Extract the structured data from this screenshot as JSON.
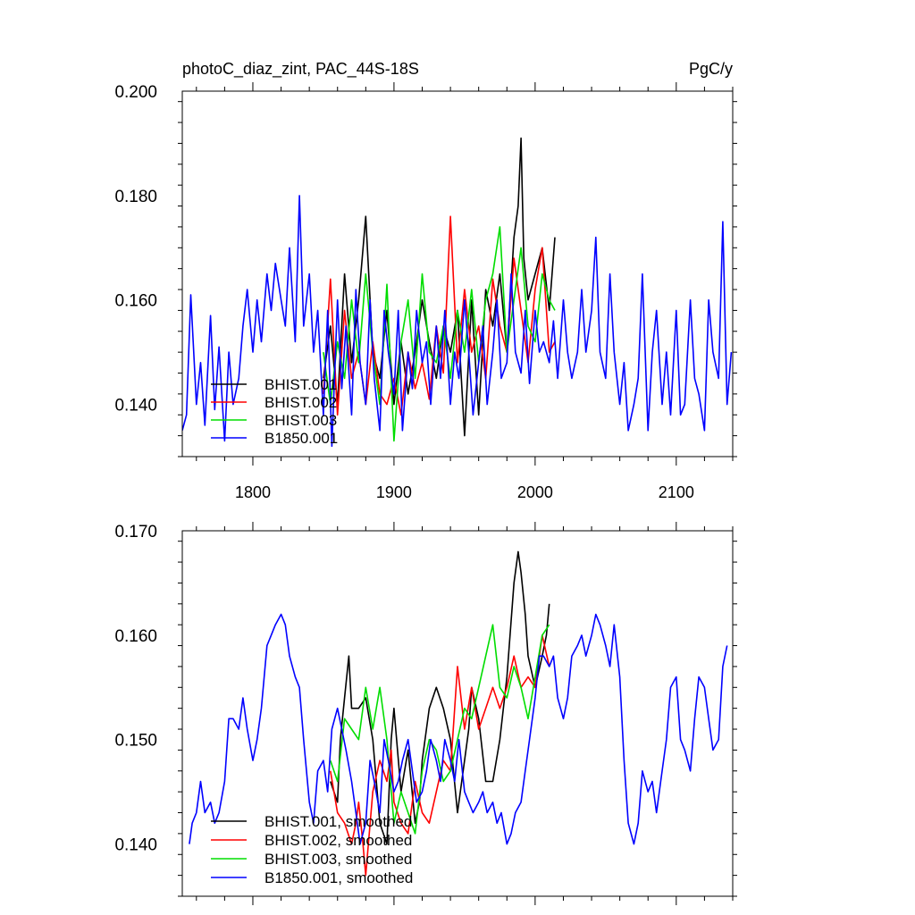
{
  "figure": {
    "title_left": "photoC_diaz_zint, PAC_44S-18S",
    "title_right": "PgC/y"
  },
  "colors": {
    "BHIST.001": "#000000",
    "BHIST.002": "#ff0000",
    "BHIST.003": "#00dd00",
    "B1850.001": "#0000ff"
  },
  "chart_data": [
    {
      "type": "line",
      "title": "photoC_diaz_zint, PAC_44S-18S",
      "units": "PgC/y",
      "xlim": [
        1750,
        2140
      ],
      "ylim": [
        0.13,
        0.2
      ],
      "x_ticks": [
        1800,
        1900,
        2000,
        2100
      ],
      "x_tick_labels": [
        "1800",
        "1900",
        "2000",
        "2100"
      ],
      "y_ticks": [
        0.14,
        0.16,
        0.18,
        0.2
      ],
      "y_tick_labels": [
        "0.140",
        "0.160",
        "0.180",
        "0.200"
      ],
      "grid": false,
      "legend": "bottom-left",
      "series": [
        {
          "name": "BHIST.001",
          "x": [
            1850,
            1855,
            1860,
            1865,
            1870,
            1875,
            1880,
            1885,
            1890,
            1895,
            1900,
            1905,
            1910,
            1915,
            1920,
            1925,
            1930,
            1935,
            1940,
            1945,
            1950,
            1955,
            1960,
            1965,
            1970,
            1975,
            1980,
            1985,
            1988,
            1990,
            1992,
            1995,
            2000,
            2005,
            2010,
            2014
          ],
          "values": [
            0.145,
            0.155,
            0.14,
            0.165,
            0.148,
            0.16,
            0.176,
            0.15,
            0.145,
            0.158,
            0.14,
            0.152,
            0.142,
            0.15,
            0.16,
            0.152,
            0.145,
            0.155,
            0.15,
            0.158,
            0.134,
            0.16,
            0.138,
            0.162,
            0.155,
            0.165,
            0.15,
            0.172,
            0.178,
            0.191,
            0.168,
            0.16,
            0.165,
            0.17,
            0.158,
            0.172
          ]
        },
        {
          "name": "BHIST.002",
          "x": [
            1850,
            1855,
            1860,
            1865,
            1870,
            1875,
            1880,
            1885,
            1890,
            1895,
            1900,
            1905,
            1910,
            1915,
            1920,
            1925,
            1930,
            1935,
            1940,
            1945,
            1950,
            1955,
            1960,
            1965,
            1970,
            1975,
            1980,
            1985,
            1990,
            1995,
            2000,
            2005,
            2010,
            2014
          ],
          "values": [
            0.142,
            0.164,
            0.138,
            0.158,
            0.145,
            0.15,
            0.14,
            0.152,
            0.142,
            0.14,
            0.145,
            0.138,
            0.15,
            0.143,
            0.148,
            0.141,
            0.155,
            0.146,
            0.176,
            0.148,
            0.162,
            0.15,
            0.155,
            0.145,
            0.164,
            0.155,
            0.15,
            0.168,
            0.158,
            0.148,
            0.162,
            0.17,
            0.15,
            0.152
          ]
        },
        {
          "name": "BHIST.003",
          "x": [
            1850,
            1855,
            1860,
            1865,
            1870,
            1875,
            1880,
            1885,
            1890,
            1895,
            1900,
            1905,
            1910,
            1915,
            1920,
            1925,
            1930,
            1935,
            1940,
            1945,
            1950,
            1955,
            1960,
            1965,
            1970,
            1975,
            1980,
            1985,
            1990,
            1995,
            2000,
            2005,
            2010,
            2014
          ],
          "values": [
            0.15,
            0.14,
            0.152,
            0.145,
            0.16,
            0.148,
            0.165,
            0.15,
            0.14,
            0.163,
            0.133,
            0.152,
            0.16,
            0.145,
            0.165,
            0.15,
            0.148,
            0.155,
            0.145,
            0.158,
            0.15,
            0.162,
            0.148,
            0.16,
            0.165,
            0.174,
            0.15,
            0.16,
            0.17,
            0.155,
            0.152,
            0.165,
            0.16,
            0.158
          ]
        },
        {
          "name": "B1850.001",
          "x": [
            1750,
            1753,
            1756,
            1760,
            1763,
            1766,
            1770,
            1773,
            1776,
            1780,
            1783,
            1786,
            1790,
            1793,
            1796,
            1800,
            1803,
            1806,
            1810,
            1813,
            1816,
            1820,
            1823,
            1826,
            1830,
            1833,
            1836,
            1840,
            1843,
            1846,
            1850,
            1853,
            1856,
            1860,
            1863,
            1866,
            1870,
            1873,
            1876,
            1880,
            1883,
            1886,
            1890,
            1893,
            1896,
            1900,
            1903,
            1906,
            1910,
            1913,
            1916,
            1920,
            1923,
            1926,
            1930,
            1933,
            1936,
            1940,
            1943,
            1946,
            1950,
            1953,
            1956,
            1960,
            1963,
            1966,
            1970,
            1973,
            1976,
            1980,
            1983,
            1986,
            1990,
            1993,
            1996,
            2000,
            2003,
            2006,
            2010,
            2013,
            2016,
            2020,
            2023,
            2026,
            2030,
            2033,
            2036,
            2040,
            2043,
            2046,
            2050,
            2053,
            2056,
            2060,
            2063,
            2066,
            2070,
            2073,
            2076,
            2080,
            2083,
            2086,
            2090,
            2093,
            2096,
            2100,
            2103,
            2106,
            2110,
            2113,
            2116,
            2120,
            2123,
            2126,
            2130,
            2133,
            2136,
            2139
          ],
          "values": [
            0.135,
            0.138,
            0.161,
            0.14,
            0.148,
            0.136,
            0.157,
            0.139,
            0.151,
            0.133,
            0.15,
            0.14,
            0.145,
            0.155,
            0.162,
            0.15,
            0.16,
            0.152,
            0.165,
            0.158,
            0.167,
            0.16,
            0.155,
            0.17,
            0.152,
            0.18,
            0.155,
            0.165,
            0.15,
            0.158,
            0.138,
            0.158,
            0.132,
            0.16,
            0.143,
            0.155,
            0.138,
            0.162,
            0.148,
            0.14,
            0.16,
            0.145,
            0.135,
            0.158,
            0.15,
            0.142,
            0.158,
            0.135,
            0.15,
            0.143,
            0.158,
            0.148,
            0.152,
            0.14,
            0.155,
            0.145,
            0.158,
            0.14,
            0.15,
            0.145,
            0.16,
            0.15,
            0.138,
            0.148,
            0.155,
            0.14,
            0.15,
            0.16,
            0.145,
            0.148,
            0.165,
            0.15,
            0.146,
            0.158,
            0.144,
            0.158,
            0.15,
            0.152,
            0.148,
            0.156,
            0.145,
            0.16,
            0.15,
            0.145,
            0.15,
            0.162,
            0.15,
            0.158,
            0.172,
            0.15,
            0.145,
            0.165,
            0.15,
            0.14,
            0.148,
            0.135,
            0.14,
            0.145,
            0.165,
            0.135,
            0.15,
            0.158,
            0.14,
            0.15,
            0.138,
            0.158,
            0.138,
            0.14,
            0.16,
            0.145,
            0.142,
            0.135,
            0.16,
            0.15,
            0.145,
            0.175,
            0.14,
            0.15
          ]
        }
      ]
    },
    {
      "type": "line",
      "xlim": [
        1750,
        2140
      ],
      "ylim": [
        0.135,
        0.17
      ],
      "x_ticks": [
        1800,
        1900,
        2000,
        2100
      ],
      "x_tick_labels": [
        "",
        "",
        "",
        ""
      ],
      "y_ticks": [
        0.14,
        0.15,
        0.16,
        0.17
      ],
      "y_tick_labels": [
        "0.140",
        "0.150",
        "0.160",
        "0.170"
      ],
      "grid": false,
      "legend": "bottom-left",
      "series": [
        {
          "name": "BHIST.001, smoothed",
          "x": [
            1855,
            1860,
            1862,
            1865,
            1868,
            1870,
            1875,
            1880,
            1885,
            1890,
            1895,
            1898,
            1900,
            1905,
            1910,
            1915,
            1918,
            1920,
            1925,
            1930,
            1935,
            1940,
            1945,
            1950,
            1953,
            1955,
            1960,
            1965,
            1970,
            1975,
            1980,
            1985,
            1988,
            1990,
            1993,
            1995,
            2000,
            2005,
            2008,
            2010
          ],
          "values": [
            0.146,
            0.144,
            0.15,
            0.154,
            0.158,
            0.153,
            0.153,
            0.154,
            0.15,
            0.142,
            0.14,
            0.15,
            0.153,
            0.145,
            0.149,
            0.142,
            0.144,
            0.148,
            0.153,
            0.155,
            0.153,
            0.15,
            0.143,
            0.148,
            0.151,
            0.155,
            0.152,
            0.146,
            0.146,
            0.15,
            0.156,
            0.165,
            0.168,
            0.166,
            0.162,
            0.158,
            0.155,
            0.158,
            0.16,
            0.163
          ]
        },
        {
          "name": "BHIST.002, smoothed",
          "x": [
            1855,
            1860,
            1865,
            1870,
            1873,
            1875,
            1878,
            1880,
            1885,
            1890,
            1895,
            1898,
            1900,
            1905,
            1910,
            1915,
            1920,
            1925,
            1930,
            1935,
            1940,
            1945,
            1950,
            1955,
            1960,
            1965,
            1970,
            1975,
            1980,
            1985,
            1990,
            1995,
            2000,
            2005,
            2010
          ],
          "values": [
            0.147,
            0.143,
            0.142,
            0.14,
            0.142,
            0.144,
            0.14,
            0.137,
            0.145,
            0.148,
            0.146,
            0.149,
            0.144,
            0.142,
            0.141,
            0.146,
            0.143,
            0.142,
            0.145,
            0.148,
            0.147,
            0.157,
            0.151,
            0.155,
            0.151,
            0.153,
            0.155,
            0.153,
            0.155,
            0.158,
            0.155,
            0.156,
            0.155,
            0.16,
            0.157
          ]
        },
        {
          "name": "BHIST.003, smoothed",
          "x": [
            1855,
            1860,
            1865,
            1870,
            1875,
            1880,
            1885,
            1890,
            1895,
            1900,
            1905,
            1910,
            1915,
            1920,
            1925,
            1930,
            1935,
            1940,
            1945,
            1950,
            1955,
            1960,
            1965,
            1970,
            1975,
            1980,
            1985,
            1990,
            1995,
            2000,
            2005,
            2010
          ],
          "values": [
            0.148,
            0.146,
            0.152,
            0.151,
            0.15,
            0.155,
            0.151,
            0.155,
            0.15,
            0.142,
            0.145,
            0.143,
            0.141,
            0.147,
            0.15,
            0.149,
            0.146,
            0.147,
            0.15,
            0.153,
            0.152,
            0.155,
            0.158,
            0.161,
            0.155,
            0.154,
            0.157,
            0.155,
            0.152,
            0.156,
            0.16,
            0.161
          ]
        },
        {
          "name": "B1850.001, smoothed",
          "x": [
            1755,
            1757,
            1760,
            1763,
            1766,
            1770,
            1773,
            1776,
            1780,
            1783,
            1786,
            1790,
            1793,
            1796,
            1800,
            1803,
            1806,
            1810,
            1813,
            1816,
            1820,
            1823,
            1826,
            1830,
            1833,
            1836,
            1840,
            1843,
            1846,
            1850,
            1853,
            1856,
            1860,
            1863,
            1866,
            1870,
            1873,
            1876,
            1880,
            1883,
            1886,
            1890,
            1893,
            1896,
            1900,
            1903,
            1906,
            1910,
            1913,
            1916,
            1920,
            1923,
            1926,
            1930,
            1933,
            1936,
            1940,
            1943,
            1946,
            1950,
            1953,
            1956,
            1960,
            1963,
            1966,
            1970,
            1973,
            1976,
            1980,
            1983,
            1986,
            1990,
            1993,
            1996,
            2000,
            2003,
            2006,
            2010,
            2013,
            2016,
            2020,
            2023,
            2026,
            2030,
            2033,
            2036,
            2040,
            2043,
            2046,
            2050,
            2053,
            2056,
            2060,
            2063,
            2066,
            2070,
            2073,
            2076,
            2080,
            2083,
            2086,
            2090,
            2093,
            2096,
            2100,
            2103,
            2106,
            2110,
            2113,
            2116,
            2120,
            2123,
            2126,
            2130,
            2133,
            2136
          ],
          "values": [
            0.14,
            0.142,
            0.143,
            0.146,
            0.143,
            0.144,
            0.142,
            0.143,
            0.146,
            0.152,
            0.152,
            0.151,
            0.154,
            0.151,
            0.148,
            0.15,
            0.153,
            0.159,
            0.16,
            0.161,
            0.162,
            0.161,
            0.158,
            0.156,
            0.155,
            0.15,
            0.144,
            0.142,
            0.147,
            0.148,
            0.145,
            0.151,
            0.153,
            0.151,
            0.149,
            0.146,
            0.143,
            0.14,
            0.142,
            0.148,
            0.146,
            0.143,
            0.15,
            0.148,
            0.145,
            0.146,
            0.148,
            0.15,
            0.147,
            0.144,
            0.145,
            0.147,
            0.15,
            0.148,
            0.146,
            0.15,
            0.148,
            0.146,
            0.15,
            0.145,
            0.144,
            0.143,
            0.144,
            0.145,
            0.143,
            0.144,
            0.142,
            0.143,
            0.14,
            0.141,
            0.143,
            0.144,
            0.147,
            0.15,
            0.154,
            0.158,
            0.158,
            0.157,
            0.158,
            0.154,
            0.152,
            0.154,
            0.158,
            0.159,
            0.16,
            0.158,
            0.16,
            0.162,
            0.161,
            0.159,
            0.157,
            0.161,
            0.156,
            0.148,
            0.142,
            0.14,
            0.142,
            0.147,
            0.145,
            0.146,
            0.143,
            0.147,
            0.15,
            0.155,
            0.156,
            0.15,
            0.149,
            0.147,
            0.152,
            0.156,
            0.155,
            0.152,
            0.149,
            0.15,
            0.157,
            0.159
          ]
        }
      ]
    }
  ]
}
